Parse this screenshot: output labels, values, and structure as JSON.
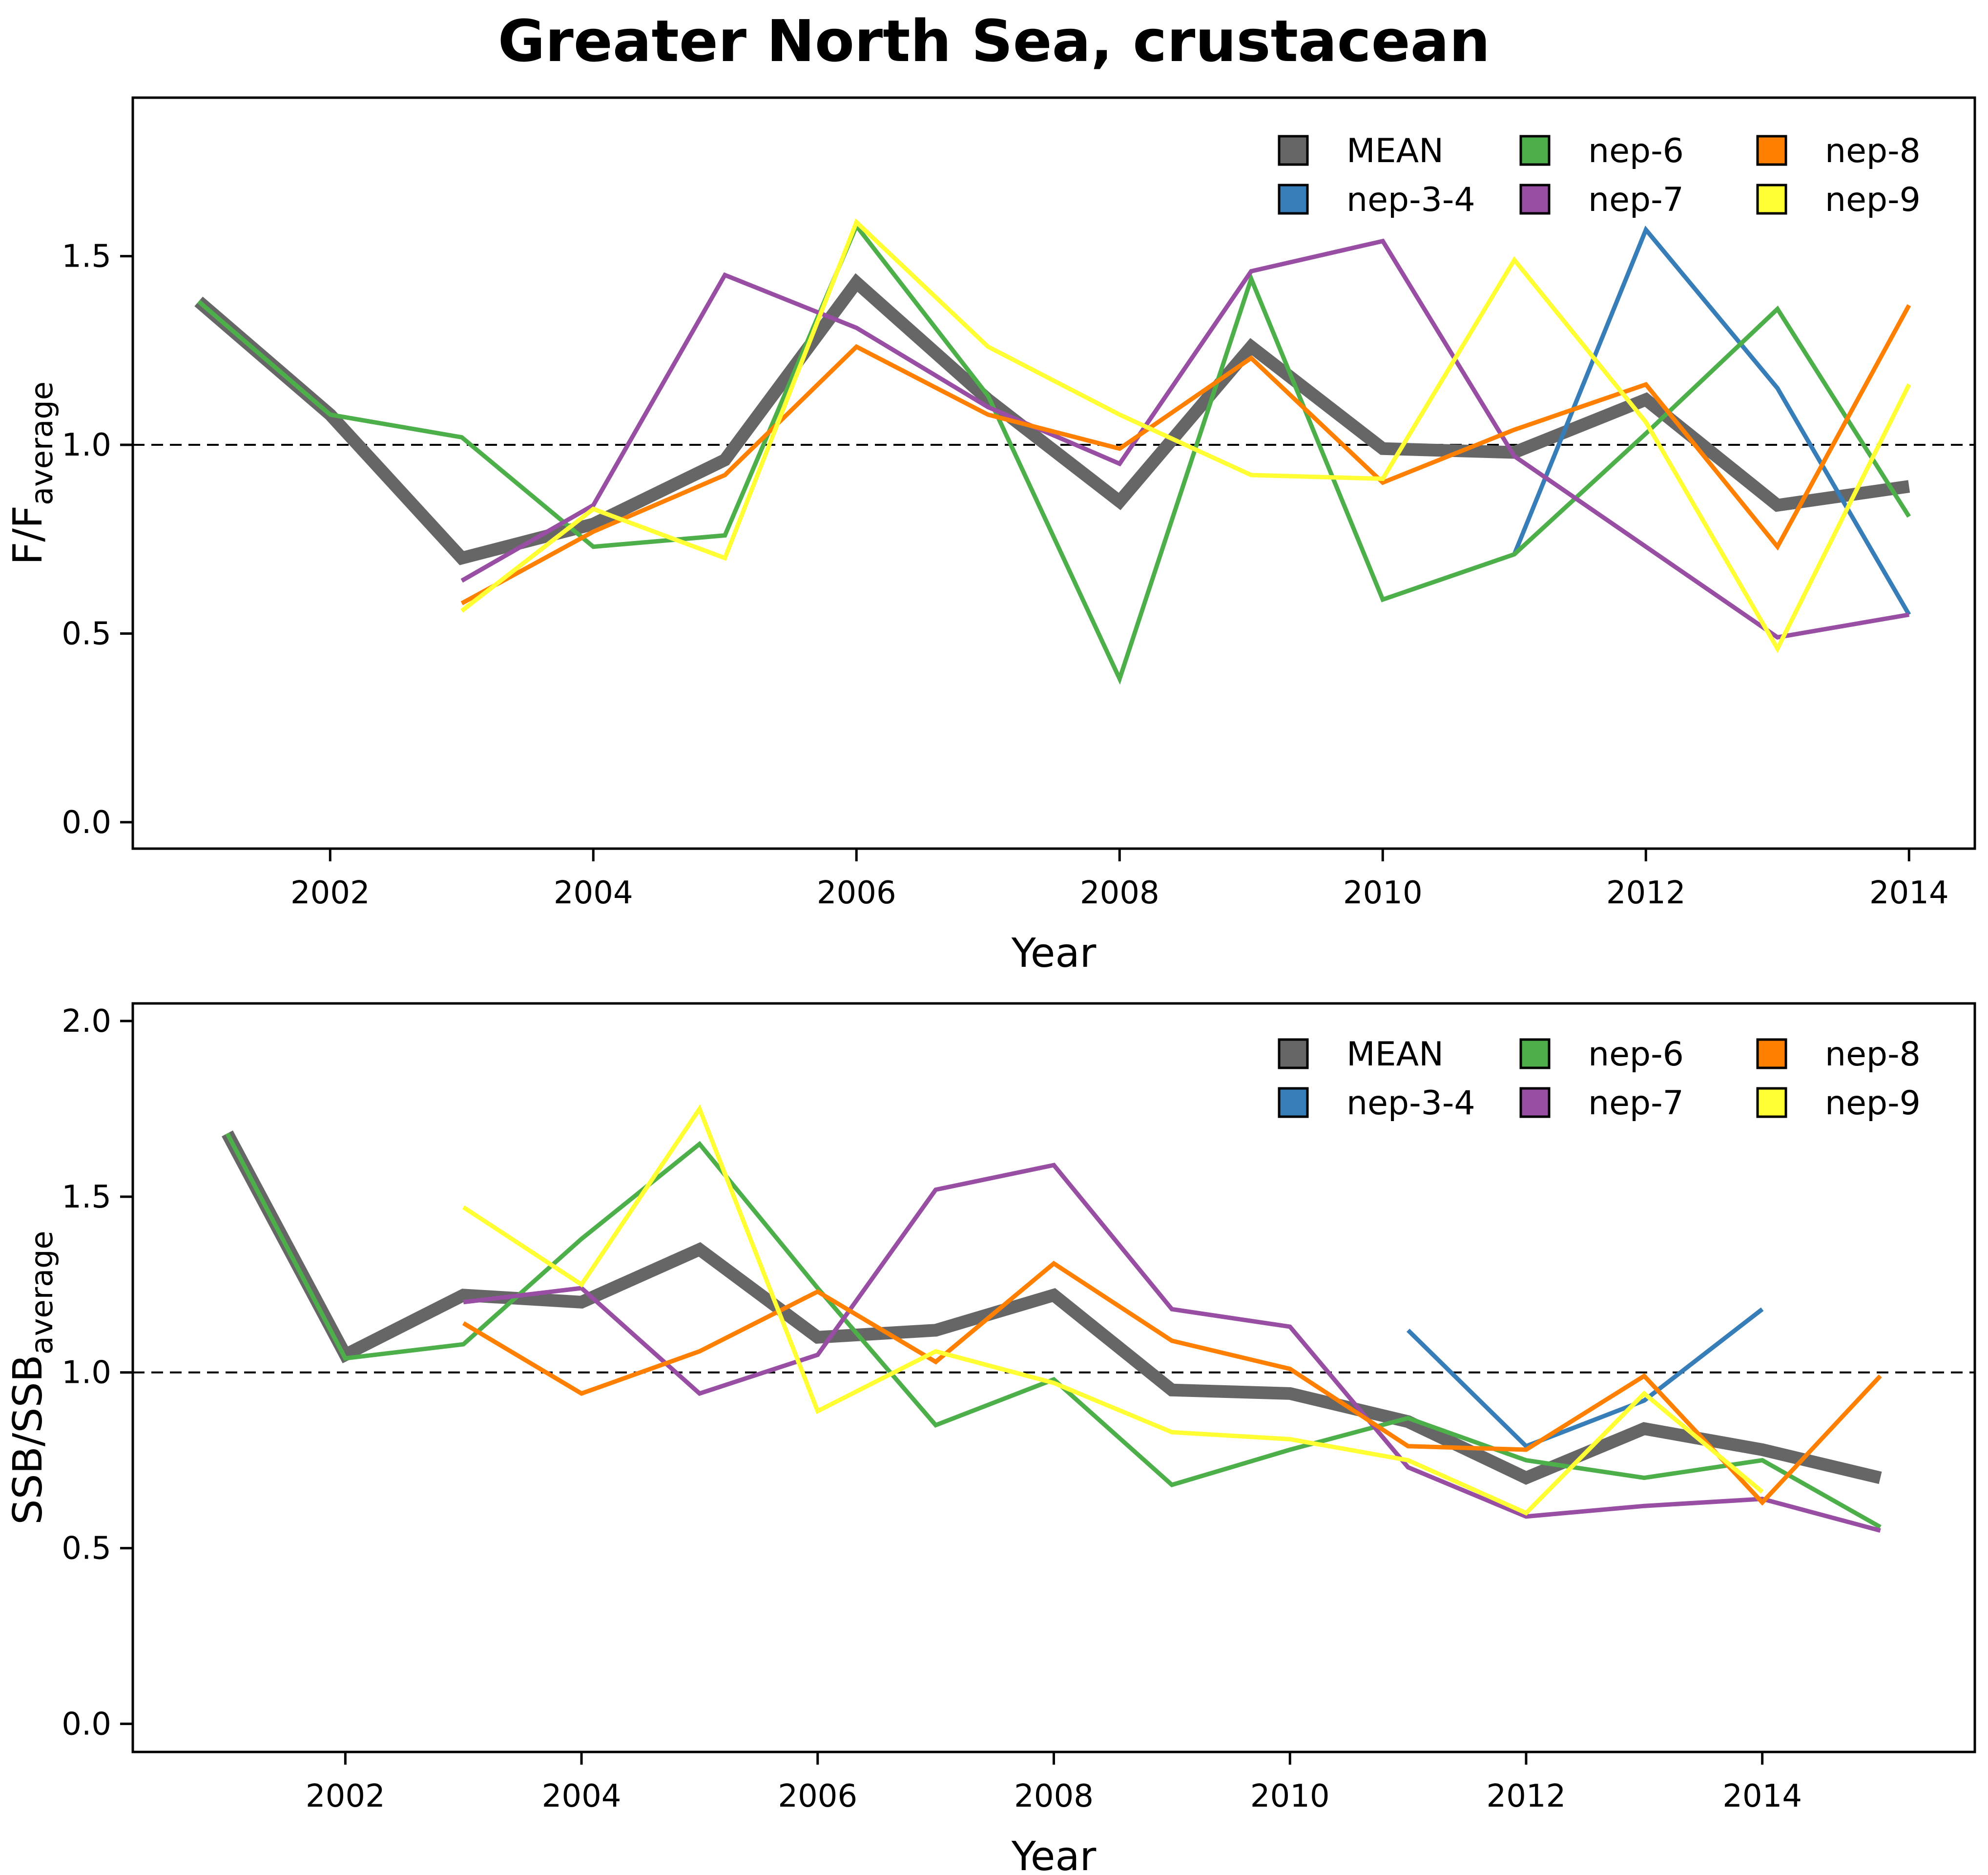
{
  "title": "Greater North Sea, crustacean",
  "chart_data": [
    {
      "type": "line",
      "xlabel": "Year",
      "ylabel_base": "F/F",
      "ylabel_sub": "average",
      "xlim": [
        2000.5,
        2014.5
      ],
      "ylim": [
        -0.07,
        1.92
      ],
      "xticks": [
        2002,
        2004,
        2006,
        2008,
        2010,
        2012,
        2014
      ],
      "yticks": [
        0.0,
        0.5,
        1.0,
        1.5
      ],
      "ytick_labels": [
        "0.0",
        "0.5",
        "1.0",
        "1.5"
      ],
      "reference_line": 1.0,
      "grid": false,
      "legend_position": "top-right",
      "series": [
        {
          "name": "MEAN",
          "color": "#666666",
          "emphasis": true,
          "points": [
            [
              2001,
              1.38
            ],
            [
              2002,
              1.08
            ],
            [
              2003,
              0.7
            ],
            [
              2004,
              0.79
            ],
            [
              2005,
              0.96
            ],
            [
              2006,
              1.43
            ],
            [
              2007,
              1.12
            ],
            [
              2008,
              0.85
            ],
            [
              2009,
              1.26
            ],
            [
              2010,
              0.99
            ],
            [
              2011,
              0.98
            ],
            [
              2012,
              1.12
            ],
            [
              2013,
              0.84
            ],
            [
              2014,
              0.89
            ]
          ]
        },
        {
          "name": "nep-3-4",
          "color": "#377EB8",
          "emphasis": false,
          "points": [
            [
              2011,
              0.71
            ],
            [
              2012,
              1.57
            ],
            [
              2013,
              1.15
            ],
            [
              2014,
              0.55
            ]
          ]
        },
        {
          "name": "nep-6",
          "color": "#4DAF4A",
          "emphasis": false,
          "points": [
            [
              2001,
              1.38
            ],
            [
              2002,
              1.08
            ],
            [
              2003,
              1.02
            ],
            [
              2004,
              0.73
            ],
            [
              2005,
              0.76
            ],
            [
              2006,
              1.58
            ],
            [
              2007,
              1.13
            ],
            [
              2008,
              0.38
            ],
            [
              2009,
              1.44
            ],
            [
              2010,
              0.59
            ],
            [
              2011,
              0.71
            ],
            [
              2012,
              1.03
            ],
            [
              2013,
              1.36
            ],
            [
              2014,
              0.81
            ]
          ]
        },
        {
          "name": "nep-7",
          "color": "#984EA3",
          "emphasis": false,
          "points": [
            [
              2003,
              0.64
            ],
            [
              2004,
              0.84
            ],
            [
              2005,
              1.45
            ],
            [
              2006,
              1.31
            ],
            [
              2007,
              1.1
            ],
            [
              2008,
              0.95
            ],
            [
              2009,
              1.46
            ],
            [
              2010,
              1.54
            ],
            [
              2011,
              0.97
            ],
            [
              2012,
              0.73
            ],
            [
              2013,
              0.49
            ],
            [
              2014,
              0.55
            ]
          ]
        },
        {
          "name": "nep-8",
          "color": "#FF7F00",
          "emphasis": false,
          "points": [
            [
              2003,
              0.58
            ],
            [
              2004,
              0.77
            ],
            [
              2005,
              0.92
            ],
            [
              2006,
              1.26
            ],
            [
              2007,
              1.08
            ],
            [
              2008,
              0.99
            ],
            [
              2009,
              1.23
            ],
            [
              2010,
              0.9
            ],
            [
              2011,
              1.04
            ],
            [
              2012,
              1.16
            ],
            [
              2013,
              0.73
            ],
            [
              2014,
              1.37
            ]
          ]
        },
        {
          "name": "nep-9",
          "color": "#FFFF33",
          "emphasis": false,
          "points": [
            [
              2003,
              0.56
            ],
            [
              2004,
              0.83
            ],
            [
              2005,
              0.7
            ],
            [
              2006,
              1.59
            ],
            [
              2007,
              1.26
            ],
            [
              2008,
              1.08
            ],
            [
              2009,
              0.92
            ],
            [
              2010,
              0.91
            ],
            [
              2011,
              1.49
            ],
            [
              2012,
              1.06
            ],
            [
              2013,
              0.46
            ],
            [
              2014,
              1.16
            ]
          ]
        }
      ]
    },
    {
      "type": "line",
      "xlabel": "Year",
      "ylabel_base": "SSB/SSB",
      "ylabel_sub": "average",
      "xlim": [
        2000.2,
        2015.8
      ],
      "ylim": [
        -0.08,
        2.05
      ],
      "xticks": [
        2002,
        2004,
        2006,
        2008,
        2010,
        2012,
        2014
      ],
      "yticks": [
        0.0,
        0.5,
        1.0,
        1.5,
        2.0
      ],
      "ytick_labels": [
        "0.0",
        "0.5",
        "1.0",
        "1.5",
        "2.0"
      ],
      "reference_line": 1.0,
      "grid": false,
      "legend_position": "top-right",
      "series": [
        {
          "name": "MEAN",
          "color": "#666666",
          "emphasis": true,
          "points": [
            [
              2001,
              1.68
            ],
            [
              2002,
              1.05
            ],
            [
              2003,
              1.22
            ],
            [
              2004,
              1.2
            ],
            [
              2005,
              1.35
            ],
            [
              2006,
              1.1
            ],
            [
              2007,
              1.12
            ],
            [
              2008,
              1.22
            ],
            [
              2009,
              0.95
            ],
            [
              2010,
              0.94
            ],
            [
              2011,
              0.86
            ],
            [
              2012,
              0.7
            ],
            [
              2013,
              0.84
            ],
            [
              2014,
              0.78
            ],
            [
              2015,
              0.7
            ]
          ]
        },
        {
          "name": "nep-3-4",
          "color": "#377EB8",
          "emphasis": false,
          "points": [
            [
              2011,
              1.12
            ],
            [
              2012,
              0.79
            ],
            [
              2013,
              0.92
            ],
            [
              2014,
              1.18
            ]
          ]
        },
        {
          "name": "nep-6",
          "color": "#4DAF4A",
          "emphasis": false,
          "points": [
            [
              2001,
              1.68
            ],
            [
              2002,
              1.04
            ],
            [
              2003,
              1.08
            ],
            [
              2004,
              1.38
            ],
            [
              2005,
              1.65
            ],
            [
              2006,
              1.24
            ],
            [
              2007,
              0.85
            ],
            [
              2008,
              0.98
            ],
            [
              2009,
              0.68
            ],
            [
              2010,
              0.78
            ],
            [
              2011,
              0.87
            ],
            [
              2012,
              0.75
            ],
            [
              2013,
              0.7
            ],
            [
              2014,
              0.75
            ],
            [
              2015,
              0.56
            ]
          ]
        },
        {
          "name": "nep-7",
          "color": "#984EA3",
          "emphasis": false,
          "points": [
            [
              2003,
              1.2
            ],
            [
              2004,
              1.24
            ],
            [
              2005,
              0.94
            ],
            [
              2006,
              1.05
            ],
            [
              2007,
              1.52
            ],
            [
              2008,
              1.59
            ],
            [
              2009,
              1.18
            ],
            [
              2010,
              1.13
            ],
            [
              2011,
              0.73
            ],
            [
              2012,
              0.59
            ],
            [
              2013,
              0.62
            ],
            [
              2014,
              0.64
            ],
            [
              2015,
              0.55
            ]
          ]
        },
        {
          "name": "nep-8",
          "color": "#FF7F00",
          "emphasis": false,
          "points": [
            [
              2003,
              1.14
            ],
            [
              2004,
              0.94
            ],
            [
              2005,
              1.06
            ],
            [
              2006,
              1.23
            ],
            [
              2007,
              1.03
            ],
            [
              2008,
              1.31
            ],
            [
              2009,
              1.09
            ],
            [
              2010,
              1.01
            ],
            [
              2011,
              0.79
            ],
            [
              2012,
              0.78
            ],
            [
              2013,
              0.99
            ],
            [
              2014,
              0.63
            ],
            [
              2015,
              0.99
            ]
          ]
        },
        {
          "name": "nep-9",
          "color": "#FFFF33",
          "emphasis": false,
          "points": [
            [
              2003,
              1.47
            ],
            [
              2004,
              1.25
            ],
            [
              2005,
              1.75
            ],
            [
              2006,
              0.89
            ],
            [
              2007,
              1.06
            ],
            [
              2008,
              0.97
            ],
            [
              2009,
              0.83
            ],
            [
              2010,
              0.81
            ],
            [
              2011,
              0.75
            ],
            [
              2012,
              0.6
            ],
            [
              2013,
              0.94
            ],
            [
              2014,
              0.66
            ]
          ]
        }
      ]
    }
  ]
}
